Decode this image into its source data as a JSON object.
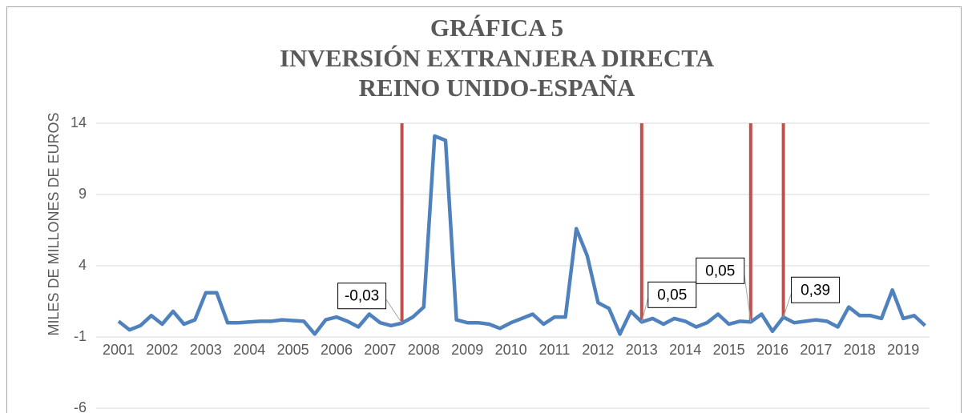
{
  "chart_data": {
    "type": "line",
    "title": [
      "GRÁFICA 5",
      "INVERSIÓN EXTRANJERA DIRECTA",
      "REINO UNIDO-ESPAÑA"
    ],
    "y_label": "MILES DE MILLONES DE EUROS",
    "categories": [
      "2001",
      null,
      null,
      null,
      "2002",
      null,
      null,
      null,
      "2003",
      null,
      null,
      null,
      "2004",
      null,
      null,
      null,
      "2005",
      null,
      null,
      null,
      "2006",
      null,
      null,
      null,
      "2007",
      null,
      null,
      null,
      "2008",
      null,
      null,
      null,
      "2009",
      null,
      null,
      null,
      "2010",
      null,
      null,
      null,
      "2011",
      null,
      null,
      null,
      "2012",
      null,
      null,
      null,
      "2013",
      null,
      null,
      null,
      "2014",
      null,
      null,
      null,
      "2015",
      null,
      null,
      null,
      "2016",
      null,
      null,
      null,
      "2017",
      null,
      null,
      null,
      "2018",
      null,
      null,
      null,
      "2019",
      null,
      null
    ],
    "series": [
      {
        "name": null,
        "color": "#4f81bd",
        "values": [
          0.1,
          -0.5,
          -0.2,
          0.5,
          -0.1,
          0.8,
          -0.1,
          0.2,
          2.1,
          2.1,
          0.0,
          0.0,
          0.05,
          0.1,
          0.1,
          0.2,
          0.15,
          0.1,
          -0.8,
          0.2,
          0.4,
          0.1,
          -0.3,
          0.6,
          0.0,
          -0.2,
          -0.03,
          0.4,
          1.1,
          13.1,
          12.8,
          0.2,
          0.0,
          0.0,
          -0.1,
          -0.4,
          0.0,
          0.3,
          0.6,
          -0.1,
          0.4,
          0.4,
          6.6,
          4.7,
          1.4,
          1.0,
          -0.8,
          0.8,
          0.05,
          0.3,
          -0.1,
          0.3,
          0.1,
          -0.3,
          0.0,
          0.6,
          -0.1,
          0.1,
          0.05,
          0.6,
          -0.6,
          0.39,
          0.0,
          0.1,
          0.2,
          0.1,
          -0.3,
          1.1,
          0.5,
          0.5,
          0.3,
          2.3,
          0.3,
          0.5,
          -0.2
        ],
        "value_labels": [
          null,
          null,
          null,
          null,
          null,
          null,
          null,
          null,
          null,
          null,
          null,
          null,
          null,
          null,
          null,
          null,
          null,
          null,
          null,
          null,
          null,
          null,
          null,
          null,
          null,
          null,
          "-0,03",
          null,
          null,
          null,
          null,
          null,
          null,
          null,
          null,
          null,
          null,
          null,
          null,
          null,
          null,
          null,
          null,
          null,
          null,
          null,
          null,
          null,
          "0,05",
          null,
          null,
          null,
          null,
          null,
          null,
          null,
          null,
          null,
          "0,05",
          null,
          null,
          "0,39",
          null,
          null,
          null,
          null,
          null,
          null,
          null,
          null,
          null,
          null,
          null,
          null,
          null
        ]
      }
    ],
    "vline_color": "#c0504d",
    "ylim": [
      -6,
      14
    ],
    "yticks": [
      -6,
      -1,
      4,
      9,
      14
    ],
    "grid": true
  }
}
